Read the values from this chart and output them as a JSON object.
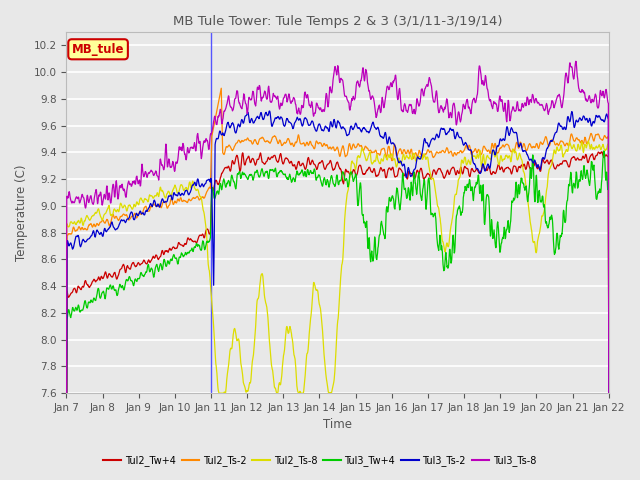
{
  "title": "MB Tule Tower: Tule Temps 2 & 3 (3/1/11-3/19/14)",
  "xlabel": "Time",
  "ylabel": "Temperature (C)",
  "ylim": [
    7.6,
    10.3
  ],
  "yticks": [
    7.6,
    7.8,
    8.0,
    8.2,
    8.4,
    8.6,
    8.8,
    9.0,
    9.2,
    9.4,
    9.6,
    9.8,
    10.0,
    10.2
  ],
  "xtick_labels": [
    "Jan 7",
    "Jan 8",
    "Jan 9",
    "Jan 10",
    "Jan 11",
    "Jan 12",
    "Jan 13",
    "Jan 14",
    "Jan 15",
    "Jan 16",
    "Jan 17",
    "Jan 18",
    "Jan 19",
    "Jan 20",
    "Jan 21",
    "Jan 22"
  ],
  "legend_box": {
    "text": "MB_tule",
    "facecolor": "#ffff99",
    "edgecolor": "#cc0000",
    "textcolor": "#cc0000"
  },
  "bg_color": "#e8e8e8",
  "grid_color": "#ffffff",
  "n_points": 1500
}
